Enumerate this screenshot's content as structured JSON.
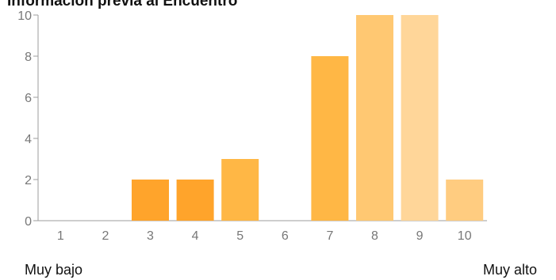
{
  "title": "Información previa al Encuentro",
  "scale": {
    "low_label": "Muy bajo",
    "high_label": "Muy alto"
  },
  "colors": {
    "axis": "#9e9e9e",
    "tick_text": "#777777",
    "bars": [
      "#ff9f1c",
      "#ff9f1c",
      "#ffa42b",
      "#ffa42b",
      "#ffb745",
      "#ffb745",
      "#ffb745",
      "#ffc872",
      "#ffd699",
      "#ffcc80"
    ]
  },
  "chart_data": {
    "type": "bar",
    "title": "Información previa al Encuentro",
    "xlabel": "",
    "ylabel": "",
    "categories": [
      "1",
      "2",
      "3",
      "4",
      "5",
      "6",
      "7",
      "8",
      "9",
      "10"
    ],
    "values": [
      0,
      0,
      2,
      2,
      3,
      0,
      8,
      10,
      10,
      2
    ],
    "ylim": [
      0,
      10
    ],
    "yticks": [
      0,
      2,
      4,
      6,
      8,
      10
    ],
    "grid": false,
    "legend": "none"
  }
}
